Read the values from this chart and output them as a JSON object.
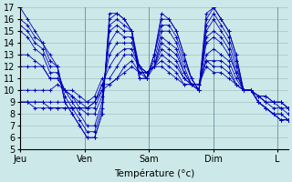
{
  "xlabel": "Température (°c)",
  "background_color": "#cce8e8",
  "grid_color": "#99bbbb",
  "line_color": "#0000bb",
  "marker": "+",
  "ylim": [
    5,
    17
  ],
  "yticks": [
    5,
    6,
    7,
    8,
    9,
    10,
    11,
    12,
    13,
    14,
    15,
    16,
    17
  ],
  "day_labels": [
    "Jeu",
    "Ven",
    "Sam",
    "Dim",
    "L"
  ],
  "day_positions": [
    0,
    72,
    144,
    216,
    288
  ],
  "xlim": [
    0,
    300
  ],
  "n_points": 37,
  "series": [
    [
      17,
      16,
      15,
      14,
      13,
      12,
      9,
      8,
      7,
      6,
      6,
      8,
      16.5,
      16.5,
      16,
      15,
      11,
      11,
      13,
      16.5,
      16,
      15,
      13,
      11,
      10,
      16.5,
      17,
      16,
      15,
      13,
      10,
      10,
      9,
      8.5,
      8,
      7.5,
      7.5
    ],
    [
      16,
      15.5,
      14.5,
      14,
      12.5,
      12,
      9,
      8,
      7,
      6,
      6,
      8,
      16,
      16.5,
      16,
      15,
      11,
      11,
      13,
      16,
      16,
      15,
      13,
      11,
      10,
      16,
      17,
      16,
      15,
      13,
      10,
      10,
      9,
      8.5,
      8,
      7.5,
      7.5
    ],
    [
      15.5,
      15,
      14,
      13.5,
      12,
      12,
      9.5,
      8.5,
      7.5,
      6.5,
      6.5,
      8.5,
      15.5,
      16,
      15.5,
      15,
      11.5,
      11,
      13,
      15.5,
      15.5,
      14.5,
      12.5,
      11,
      10,
      15.5,
      16.5,
      15.5,
      14.5,
      12.5,
      10,
      10,
      9,
      8.5,
      8,
      7.5,
      7.5
    ],
    [
      15,
      14.5,
      13.5,
      13,
      11.5,
      11.5,
      10,
      9,
      8,
      7,
      7,
      9,
      15,
      15.5,
      15,
      15,
      12,
      11,
      12.5,
      15,
      15,
      14,
      12,
      10.5,
      10,
      15,
      16,
      15,
      14,
      12,
      10,
      10,
      9,
      8.5,
      8,
      8,
      7.5
    ],
    [
      13,
      13,
      12.5,
      12,
      11,
      11,
      10,
      9.5,
      8.5,
      8,
      8,
      9.5,
      14,
      15,
      14.5,
      14.5,
      12,
      11,
      12,
      14.5,
      14,
      13.5,
      11.5,
      10.5,
      10,
      14.5,
      15,
      14.5,
      13.5,
      11.5,
      10,
      10,
      9,
      8.5,
      8,
      8,
      7.5
    ],
    [
      12,
      12,
      12,
      12,
      11,
      11,
      10,
      9.5,
      9,
      8.5,
      8.5,
      10,
      13,
      14,
      14,
      14,
      12,
      11.5,
      12,
      14,
      13.5,
      13,
      11.5,
      10.5,
      10,
      14,
      14.5,
      14,
      13,
      11.5,
      10,
      10,
      9.5,
      9,
      8.5,
      8.5,
      8
    ],
    [
      10,
      10,
      10,
      10,
      10,
      10.5,
      10,
      10,
      9.5,
      9,
      9,
      10.5,
      12,
      13,
      13.5,
      13.5,
      12,
      11.5,
      12,
      13.5,
      13,
      12.5,
      11,
      10.5,
      10,
      13,
      13.5,
      13,
      12.5,
      11,
      10,
      10,
      9.5,
      9,
      9,
      8.5,
      8.5
    ],
    [
      9,
      9,
      9,
      9,
      9,
      9,
      9,
      9,
      9,
      9,
      9.5,
      11,
      11,
      12,
      13,
      13,
      12,
      11.5,
      12,
      13,
      12.5,
      12,
      11,
      10.5,
      10.5,
      12.5,
      12.5,
      12.5,
      12,
      10.5,
      10,
      10,
      9.5,
      9,
      9,
      9,
      8.5
    ],
    [
      9,
      9,
      9,
      9,
      8.5,
      8.5,
      8.5,
      8.5,
      8.5,
      8.5,
      9,
      10.5,
      10.5,
      11,
      12,
      12.5,
      11.5,
      11.5,
      12,
      12.5,
      12,
      11.5,
      10.5,
      10.5,
      10.5,
      12.5,
      12,
      12,
      11.5,
      10.5,
      10,
      10,
      9.5,
      9.5,
      9,
      9,
      8.5
    ],
    [
      9,
      9,
      8.5,
      8.5,
      8.5,
      8.5,
      8.5,
      8.5,
      8.5,
      8.5,
      9,
      10,
      10.5,
      11,
      11.5,
      12,
      11.5,
      11.5,
      12,
      12,
      11.5,
      11,
      10.5,
      10.5,
      10.5,
      12,
      11.5,
      11.5,
      11,
      10.5,
      10,
      10,
      9.5,
      9.5,
      9,
      9,
      8.5
    ]
  ]
}
